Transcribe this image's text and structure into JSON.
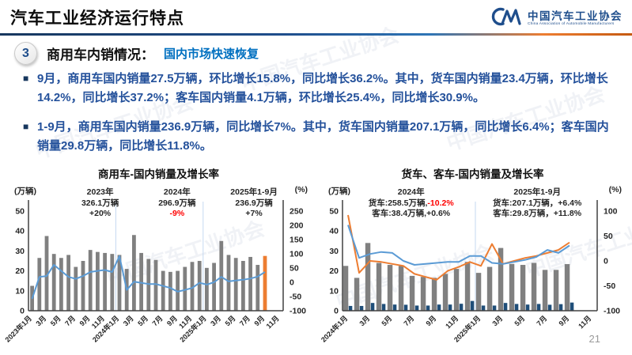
{
  "header": {
    "title": "汽车工业经济运行特点",
    "logo_cn": "中国汽车工业协会",
    "logo_en": "China Association of Automobile Manufacturers"
  },
  "watermark_text": "中国汽车工业协会",
  "section": {
    "number": "3",
    "title": "商用车内销情况：",
    "subtitle": "国内市场快速恢复"
  },
  "bullets": [
    {
      "marker": "■",
      "text": "9月，商用车国内销量27.5万辆，环比增长15.8%，同比增长36.2%。其中，货车国内销量23.4万辆，环比增长14.2%，同比增长37.2%；客车国内销量4.1万辆，环比增长25.4%，同比增长30.9%。"
    },
    {
      "marker": "■",
      "text": "1-9月，商用车国内销量236.9万辆，同比增长7%。其中，货车国内销量207.1万辆，同比增长6.4%；客车国内销量29.8万辆，同比增长11.8%。"
    }
  ],
  "page_number": "21",
  "colors": {
    "bar_gray": "#808080",
    "bar_orange": "#ed7d31",
    "bar_navy": "#1f4e79",
    "line_blue": "#5b9bd5",
    "line_orange": "#ed7d31",
    "bullet_blue": "#24519b",
    "red": "#ff0000",
    "accent_blue": "#1f4e8c"
  },
  "chart_data": [
    {
      "type": "bar",
      "title": "商用车-国内销量及增长率",
      "slots": 35,
      "left_axis": {
        "unit": "(万辆)",
        "range": [
          0,
          50
        ],
        "ticks": [
          0,
          10,
          20,
          30,
          40,
          50
        ]
      },
      "right_axis": {
        "unit": "(%)",
        "range": [
          -100,
          250
        ],
        "ticks": [
          -100,
          -50,
          0,
          50,
          100,
          150,
          200,
          250
        ]
      },
      "x_tick_labels": [
        "2023年1月",
        "3月",
        "5月",
        "7月",
        "9月",
        "11月",
        "2024年1月",
        "3月",
        "5月",
        "7月",
        "9月",
        "11月",
        "2025年1月",
        "3月",
        "5月",
        "7月",
        "9月",
        "11月"
      ],
      "bar_series": [
        {
          "name": "商用车国内销量",
          "color": "#808080",
          "highlight_last_color": "#ed7d31",
          "values": [
            12.5,
            26.5,
            37.5,
            28.5,
            26.5,
            28,
            22,
            25,
            30.5,
            29.5,
            29,
            28.5,
            28,
            21,
            38,
            29,
            26,
            25.5,
            20,
            19.5,
            20,
            22,
            24.5,
            25,
            21.5,
            24,
            35,
            28,
            26.5,
            25,
            27,
            23,
            27.5
          ]
        }
      ],
      "line_series": [
        {
          "name": "增长率",
          "color": "#5b9bd5",
          "values": [
            -58,
            19,
            22,
            61,
            40,
            19,
            12,
            22,
            36,
            40,
            43,
            36,
            92,
            -27,
            2,
            -2,
            -6,
            -6,
            -13,
            -20,
            -33,
            -27,
            -20,
            -2,
            -8,
            0,
            19,
            3,
            6,
            9,
            13,
            20,
            36
          ]
        }
      ],
      "separators_after_index": [
        11,
        23
      ],
      "annotations": [
        {
          "x_pct": 31,
          "lines": [
            [
              {
                "t": "2023年"
              }
            ],
            [
              {
                "t": "326.1万辆"
              }
            ],
            [
              {
                "t": "+20%"
              }
            ]
          ]
        },
        {
          "x_pct": 56,
          "lines": [
            [
              {
                "t": "2024年"
              }
            ],
            [
              {
                "t": "296.9万辆"
              }
            ],
            [
              {
                "t": "-9%",
                "red": true
              }
            ]
          ]
        },
        {
          "x_pct": 81,
          "lines": [
            [
              {
                "t": "2025年1-9月"
              }
            ],
            [
              {
                "t": "236.9万辆"
              }
            ],
            [
              {
                "t": "+7%"
              }
            ]
          ]
        }
      ]
    },
    {
      "type": "bar",
      "title": "货车、客车-国内销量及增长率",
      "slots": 23,
      "left_axis": {
        "unit": "(万辆)",
        "range": [
          0,
          50
        ],
        "ticks": [
          0,
          10,
          20,
          30,
          40,
          50
        ]
      },
      "right_axis": {
        "unit": "(%)",
        "range": [
          -100,
          100
        ],
        "ticks": [
          -100,
          -50,
          0,
          50,
          100
        ]
      },
      "x_tick_labels": [
        "2024年1月",
        "3月",
        "5月",
        "7月",
        "9月",
        "11月",
        "2025年1月",
        "3月",
        "5月",
        "7月",
        "9月",
        "11月"
      ],
      "bar_series": [
        {
          "name": "货车国内销量",
          "color": "#808080",
          "values": [
            22.5,
            16.5,
            34,
            24,
            23,
            22.5,
            17.5,
            17,
            16.5,
            18.5,
            21,
            24.5,
            19,
            22,
            31.5,
            23.5,
            23,
            24,
            20.5,
            20.5,
            23.4
          ]
        },
        {
          "name": "客车国内销量",
          "color": "#1f4e79",
          "values": [
            2.4,
            2.4,
            3.9,
            3.4,
            3.1,
            3.0,
            2.6,
            2.6,
            3.1,
            3.1,
            3.5,
            4.9,
            2.6,
            2.6,
            3.9,
            3.4,
            3.1,
            3.4,
            3.0,
            3.3,
            4.1
          ]
        }
      ],
      "line_series": [
        {
          "name": "货车增长率",
          "color": "#ed7d31",
          "values": [
            92,
            -24,
            0,
            -2,
            -6,
            -10,
            -26,
            -32,
            -38,
            -20,
            -12,
            -2,
            -10,
            34,
            -6,
            0,
            6,
            10,
            16,
            22,
            37
          ]
        },
        {
          "name": "客车增长率",
          "color": "#5b9bd5",
          "values": [
            72,
            6,
            14,
            18,
            16,
            0,
            -8,
            -6,
            -4,
            -2,
            -2,
            10,
            10,
            -4,
            -6,
            -2,
            2,
            8,
            22,
            16,
            31
          ]
        }
      ],
      "separators_after_index": [
        11
      ],
      "annotations": [
        {
          "x_pct": 30,
          "lines": [
            [
              {
                "t": "2024年"
              }
            ],
            [
              {
                "t": "货车:258.5万辆,"
              },
              {
                "t": "-10.2%",
                "red": true
              }
            ],
            [
              {
                "t": "客车:38.4万辆,+0.6%"
              }
            ]
          ]
        },
        {
          "x_pct": 71,
          "lines": [
            [
              {
                "t": "2025年1-9月"
              }
            ],
            [
              {
                "t": "货车:207.1万辆，+6.4%"
              }
            ],
            [
              {
                "t": "客车:29.8万辆，+11.8%"
              }
            ]
          ]
        }
      ]
    }
  ]
}
